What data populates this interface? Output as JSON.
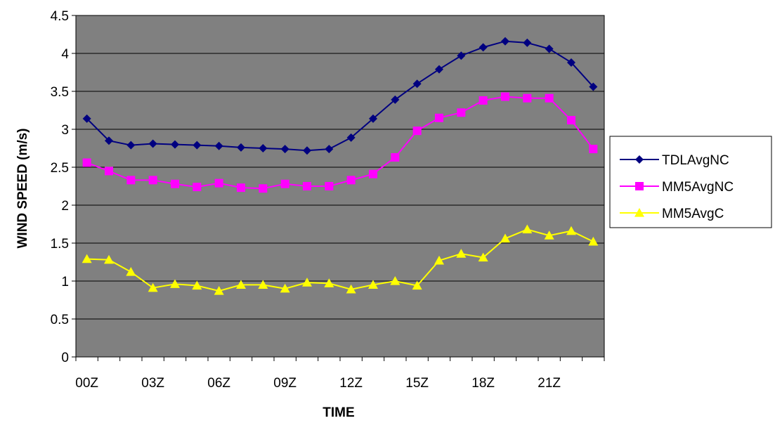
{
  "chart_data": {
    "type": "line",
    "title": "",
    "xlabel": "TIME",
    "ylabel": "WIND SPEED (m/s)",
    "ylim": [
      0,
      4.5
    ],
    "yticks": [
      "0",
      "0.5",
      "1",
      "1.5",
      "2",
      "2.5",
      "3",
      "3.5",
      "4",
      "4.5"
    ],
    "x": [
      0,
      1,
      2,
      3,
      4,
      5,
      6,
      7,
      8,
      9,
      10,
      11,
      12,
      13,
      14,
      15,
      16,
      17,
      18,
      19,
      20,
      21,
      22,
      23
    ],
    "xtick_labels": [
      "00Z",
      "03Z",
      "06Z",
      "09Z",
      "12Z",
      "15Z",
      "18Z",
      "21Z"
    ],
    "xtick_positions": [
      0,
      3,
      6,
      9,
      12,
      15,
      18,
      21
    ],
    "grid": "horizontal",
    "plot_background": "#808080",
    "legend_position": "right",
    "series": [
      {
        "name": "TDLAvgNC",
        "color": "#000080",
        "marker": "diamond",
        "values": [
          3.14,
          2.85,
          2.79,
          2.81,
          2.8,
          2.79,
          2.78,
          2.76,
          2.75,
          2.74,
          2.72,
          2.74,
          2.89,
          3.14,
          3.39,
          3.6,
          3.79,
          3.97,
          4.08,
          4.16,
          4.14,
          4.06,
          3.88,
          3.56
        ]
      },
      {
        "name": "MM5AvgNC",
        "color": "#ff00ff",
        "marker": "square",
        "values": [
          2.56,
          2.45,
          2.33,
          2.33,
          2.28,
          2.24,
          2.29,
          2.23,
          2.22,
          2.28,
          2.25,
          2.25,
          2.33,
          2.41,
          2.63,
          2.98,
          3.15,
          3.22,
          3.38,
          3.43,
          3.41,
          3.41,
          3.12,
          2.74
        ]
      },
      {
        "name": "MM5AvgC",
        "color": "#ffff00",
        "marker": "triangle",
        "values": [
          1.29,
          1.28,
          1.12,
          0.91,
          0.96,
          0.94,
          0.87,
          0.95,
          0.95,
          0.9,
          0.98,
          0.97,
          0.89,
          0.95,
          1.0,
          0.94,
          1.27,
          1.36,
          1.31,
          1.56,
          1.68,
          1.6,
          1.66,
          1.52
        ]
      }
    ]
  }
}
